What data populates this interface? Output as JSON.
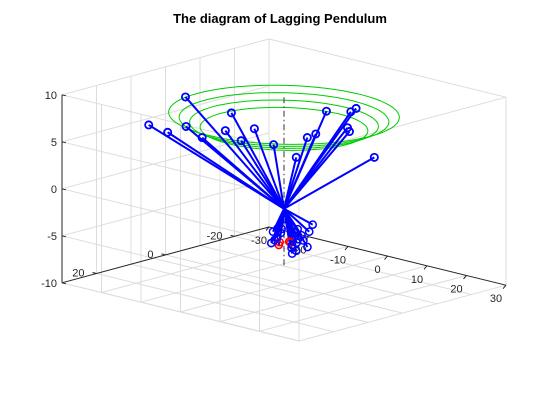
{
  "chart_data": {
    "type": "line3d",
    "title": "The diagram of Lagging Pendulum",
    "xlabel": "",
    "ylabel": "",
    "zlabel": "",
    "xlim": [
      -30,
      30
    ],
    "ylim": [
      -30,
      30
    ],
    "zlim": [
      -10,
      10
    ],
    "x_ticks": [
      -30,
      -20,
      -10,
      0,
      10,
      20,
      30
    ],
    "y_ticks": [
      -20,
      0,
      20
    ],
    "z_ticks": [
      -10,
      -5,
      0,
      5,
      10
    ],
    "grid": true,
    "box": true,
    "pivot": [
      0,
      0,
      -2
    ],
    "vertical_axis_line": {
      "z_from": -8,
      "z_to": 10,
      "style": "dash-dot",
      "color": "#333333"
    },
    "colors": {
      "rods": "#0000ff",
      "markers": "#0000ff",
      "lower_markers": "#ff0000",
      "rings": "#00cc00",
      "grid": "#dcdcdc",
      "axes": "#262626"
    },
    "rings": [
      {
        "radius": 22,
        "z": 8
      },
      {
        "radius": 20,
        "z": 7.5
      },
      {
        "radius": 18,
        "z": 7
      },
      {
        "radius": 16,
        "z": 6.5
      }
    ],
    "upper_bobs": [
      [
        -13.3,
        18.5,
        6.6
      ],
      [
        -20.8,
        15.4,
        6.3
      ],
      [
        -1.0,
        14.1,
        9.5
      ],
      [
        -15.1,
        11.1,
        6.3
      ],
      [
        -11.2,
        10.9,
        5.5
      ],
      [
        -5.4,
        2.4,
        6.2
      ],
      [
        -1.5,
        1.3,
        4.8
      ],
      [
        5.9,
        3.2,
        4.4
      ],
      [
        10.4,
        2.7,
        7.3
      ],
      [
        12.9,
        -4.6,
        9.2
      ],
      [
        13.0,
        -11.3,
        3.7
      ],
      [
        10.9,
        -6.5,
        6.7
      ],
      [
        8.3,
        -8.9,
        6.6
      ],
      [
        0.4,
        -6.3,
        5.0
      ],
      [
        15.2,
        -3.5,
        9.9
      ],
      [
        13.1,
        2.7,
        10.0
      ],
      [
        -3.6,
        8.3,
        5.7
      ],
      [
        -13.5,
        13.1,
        9.8
      ],
      [
        0.0,
        17.0,
        8.0
      ]
    ],
    "lower_bobs": [
      [
        -1.3,
        1.7,
        -4.4
      ],
      [
        -0.1,
        0.8,
        -4.5
      ],
      [
        -2.7,
        -1.1,
        -5.4
      ],
      [
        -2.0,
        -1.6,
        -4.5
      ],
      [
        1.9,
        -2.9,
        -4.9
      ],
      [
        0.4,
        -2.7,
        -4.8
      ],
      [
        3.8,
        0.8,
        -6.0
      ],
      [
        2.7,
        0.9,
        -5.8
      ],
      [
        4.9,
        -1.7,
        -4.1
      ],
      [
        4.2,
        -3.5,
        -3.6
      ],
      [
        1.5,
        -3.9,
        -5.6
      ],
      [
        1.2,
        -2.6,
        -4.3
      ],
      [
        4.8,
        -1.3,
        -5.7
      ],
      [
        2.6,
        -0.7,
        -5.4
      ],
      [
        -3.0,
        -0.7,
        -5.7
      ],
      [
        -3.3,
        -0.1,
        -6.0
      ],
      [
        -2.4,
        -3.5,
        -3.7
      ],
      [
        1.1,
        -2.8,
        -5.4
      ],
      [
        3.6,
        1.8,
        -5.3
      ],
      [
        4.6,
        2.9,
        -6.0
      ],
      [
        -1.3,
        0.4,
        -4.2
      ]
    ],
    "lower_red_bobs": [
      [
        1.3,
        -0.4,
        -5.5
      ],
      [
        0.0,
        1.5,
        -5.7
      ],
      [
        -1.3,
        -0.2,
        -5.7
      ],
      [
        0.2,
        -1.3,
        -5.6
      ]
    ]
  }
}
